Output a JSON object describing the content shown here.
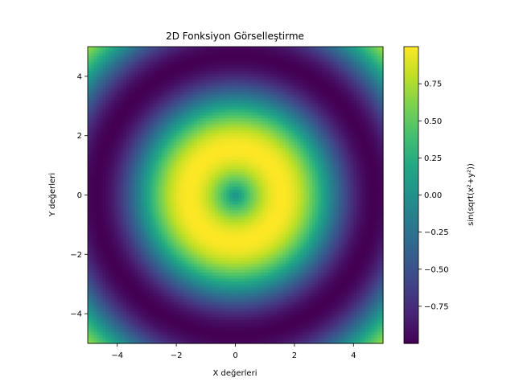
{
  "chart_data": {
    "type": "heatmap",
    "title": "2D Fonksiyon Görselleştirme",
    "xlabel": "X değerleri",
    "ylabel": "Y değerleri",
    "function": "sin(sqrt(x²+y²))",
    "colormap": "viridis",
    "xlim": [
      -5,
      5
    ],
    "ylim": [
      -5,
      5
    ],
    "grid_resolution": 100,
    "grid": false,
    "x_ticks": [
      -4,
      -2,
      0,
      2,
      4
    ],
    "y_ticks": [
      -4,
      -2,
      0,
      2,
      4
    ],
    "x_tick_labels": [
      "−4",
      "−2",
      "0",
      "2",
      "4"
    ],
    "y_tick_labels": [
      "−4",
      "−2",
      "0",
      "2",
      "4"
    ],
    "colorbar": {
      "label": "sin(sqrt(x²+y²))",
      "range": [
        -1,
        1
      ],
      "ticks": [
        0.75,
        0.5,
        0.25,
        0.0,
        -0.25,
        -0.5,
        -0.75
      ],
      "tick_labels": [
        "0.75",
        "0.50",
        "0.25",
        "0.00",
        "−0.25",
        "−0.50",
        "−0.75"
      ]
    }
  }
}
